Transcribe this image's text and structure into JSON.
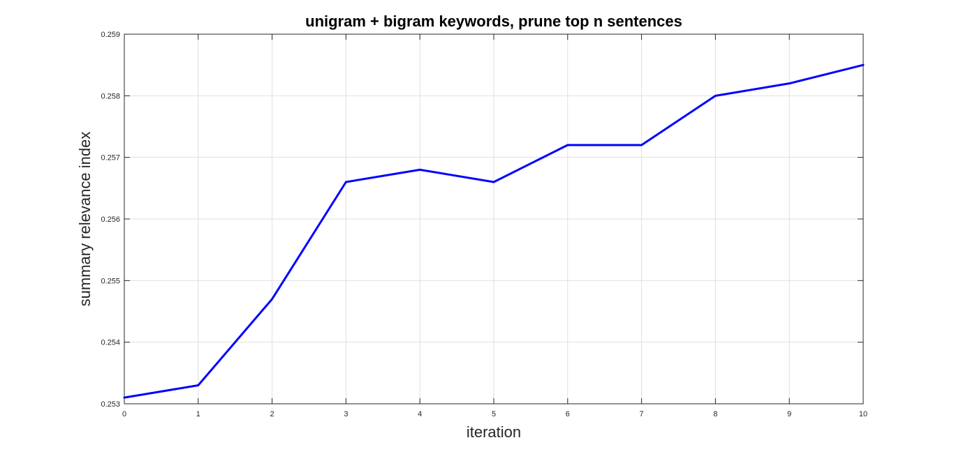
{
  "chart_data": {
    "type": "line",
    "title": "unigram + bigram keywords, prune top n sentences",
    "xlabel": "iteration",
    "ylabel": "summary relevance index",
    "xlim": [
      0,
      10
    ],
    "ylim": [
      0.253,
      0.259
    ],
    "xticks": [
      0,
      1,
      2,
      3,
      4,
      5,
      6,
      7,
      8,
      9,
      10
    ],
    "xtick_labels": [
      "0",
      "1",
      "2",
      "3",
      "4",
      "5",
      "6",
      "7",
      "8",
      "9",
      "10"
    ],
    "yticks": [
      0.253,
      0.254,
      0.255,
      0.256,
      0.257,
      0.258,
      0.259
    ],
    "ytick_labels": [
      "0.253",
      "0.254",
      "0.255",
      "0.256",
      "0.257",
      "0.258",
      "0.259"
    ],
    "grid": true,
    "series": [
      {
        "color": "#0000ff",
        "x": [
          0,
          1,
          2,
          3,
          4,
          5,
          6,
          7,
          8,
          9,
          10
        ],
        "y": [
          0.2531,
          0.2533,
          0.2547,
          0.2566,
          0.2568,
          0.2566,
          0.2572,
          0.2572,
          0.258,
          0.2582,
          0.2585
        ]
      }
    ]
  }
}
